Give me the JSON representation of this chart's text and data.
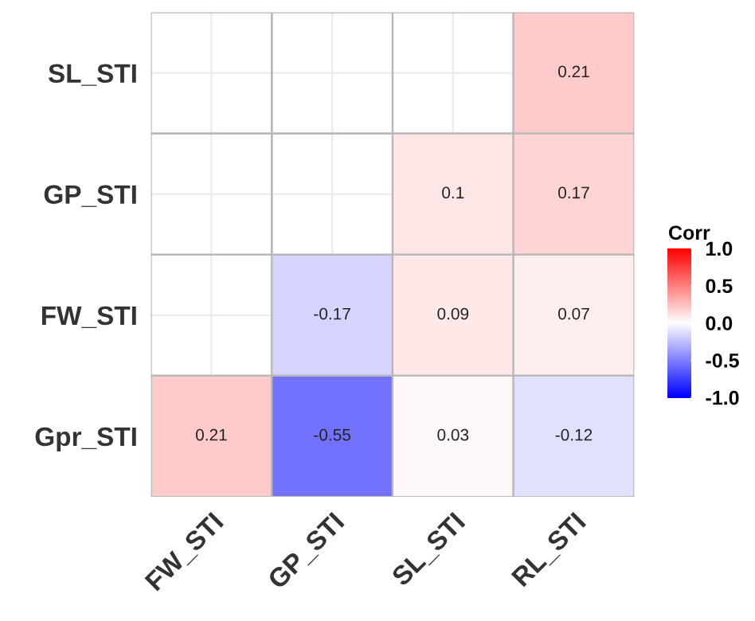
{
  "chart_data": {
    "type": "heatmap",
    "clabel": "Corr",
    "categories": [
      "FW_STI",
      "GP_STI",
      "SL_STI",
      "RL_STI"
    ],
    "y_categories": [
      "SL_STI",
      "GP_STI",
      "FW_STI",
      "Gpr_STI"
    ],
    "cells": [
      [
        null,
        null,
        null,
        0.21
      ],
      [
        null,
        null,
        0.1,
        0.17
      ],
      [
        null,
        -0.17,
        0.09,
        0.07
      ],
      [
        0.21,
        -0.55,
        0.03,
        -0.12
      ]
    ],
    "colors": [
      "#0000ff",
      "#ffffff",
      "#ff0000"
    ],
    "clim": [
      -1,
      1
    ],
    "cticks": [
      {
        "value": 1,
        "label": "1.0"
      },
      {
        "value": 0.5,
        "label": "0.5"
      },
      {
        "value": 0,
        "label": "0.0"
      },
      {
        "value": -0.5,
        "label": "-0.5"
      },
      {
        "value": -1,
        "label": "-1.0"
      }
    ],
    "data_labels": true,
    "grid": true
  }
}
